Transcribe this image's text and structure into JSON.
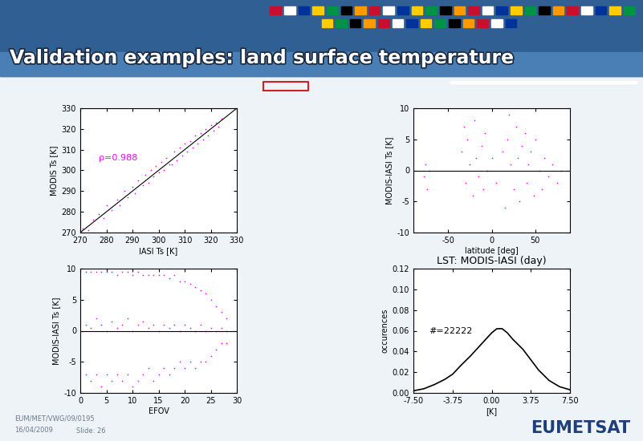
{
  "header": {
    "title": "Validation examples: land surface temperature"
  },
  "footer": {
    "document": "EUM/MET/VWG/09/0195",
    "date": "16/04/2009",
    "slide": "Slide: 26",
    "logo": "EUMETSAT"
  },
  "chart_data": [
    {
      "type": "scatter",
      "xlabel": "IASI Ts [K]",
      "ylabel": "MODIS Ts [K]",
      "annotation": "ρ=0.988",
      "color": "#ff00ff",
      "marker": ".",
      "x": [
        271,
        273,
        275,
        277,
        279,
        280,
        282,
        284,
        285,
        287,
        288,
        290,
        291,
        292,
        294,
        295,
        296,
        297,
        298,
        299,
        300,
        301,
        302,
        303,
        304,
        305,
        306,
        307,
        308,
        309,
        310,
        311,
        312,
        313,
        314,
        315,
        316,
        317,
        318,
        319,
        320,
        321,
        322,
        323,
        324
      ],
      "values": [
        272,
        271,
        276,
        279,
        277,
        283,
        281,
        286,
        283,
        290,
        287,
        292,
        289,
        295,
        293,
        298,
        294,
        300,
        297,
        302,
        299,
        304,
        300,
        306,
        303,
        303,
        309,
        305,
        311,
        307,
        313,
        309,
        314,
        311,
        317,
        313,
        318,
        315,
        320,
        317,
        322,
        319,
        323,
        321,
        325
      ],
      "reference_line": {
        "slope": 1,
        "intercept": 0
      },
      "xlim": [
        270,
        330
      ],
      "xticks": [
        270,
        280,
        290,
        300,
        310,
        320,
        330
      ],
      "ylim": [
        270,
        330
      ],
      "yticks": [
        270,
        280,
        290,
        300,
        310,
        320,
        330
      ]
    },
    {
      "type": "scatter",
      "xlabel": "latitude [deg]",
      "ylabel": "MODIS-IASI Ts [K]",
      "color": "#ff00ff",
      "marker": ".",
      "x": [
        -78,
        -76,
        -74,
        -72,
        -35,
        -32,
        -30,
        -28,
        -25,
        -22,
        -20,
        -18,
        -15,
        -12,
        -10,
        -8,
        -5,
        0,
        5,
        12,
        15,
        18,
        20,
        22,
        25,
        28,
        30,
        32,
        35,
        38,
        40,
        42,
        45,
        48,
        50,
        55,
        58,
        60,
        65,
        70,
        75,
        80
      ],
      "values": [
        -1,
        1,
        -3,
        0,
        3,
        7,
        -2,
        5,
        1,
        -4,
        8,
        2,
        -1,
        4,
        -3,
        6,
        0,
        2,
        -2,
        3,
        -6,
        5,
        9,
        1,
        -3,
        7,
        2,
        -5,
        4,
        6,
        -2,
        1,
        3,
        -4,
        5,
        0,
        -3,
        2,
        -1,
        1,
        -2,
        0
      ],
      "reference_line": {
        "y": 0
      },
      "xlim": [
        -90,
        90
      ],
      "xticks": [
        -50,
        0,
        50
      ],
      "ylim": [
        -10,
        10
      ],
      "yticks": [
        -10,
        -5,
        0,
        5,
        10
      ]
    },
    {
      "type": "scatter",
      "xlabel": "EFOV",
      "ylabel": "MODIS-IASI Ts [K]",
      "color": "#ff00ff",
      "marker": ".",
      "x": [
        1,
        1,
        1,
        2,
        2,
        2,
        3,
        3,
        3,
        4,
        4,
        4,
        5,
        5,
        5,
        6,
        6,
        6,
        7,
        7,
        7,
        8,
        8,
        8,
        9,
        9,
        9,
        10,
        10,
        10,
        11,
        11,
        11,
        12,
        12,
        12,
        13,
        13,
        13,
        14,
        14,
        14,
        15,
        15,
        15,
        16,
        16,
        16,
        17,
        17,
        17,
        18,
        18,
        18,
        19,
        19,
        19,
        20,
        20,
        20,
        21,
        21,
        21,
        22,
        22,
        22,
        23,
        23,
        23,
        24,
        24,
        24,
        25,
        25,
        25,
        26,
        26,
        26,
        27,
        27,
        27,
        28,
        28,
        28
      ],
      "values": [
        9.5,
        1,
        -7,
        9.5,
        0.5,
        -8,
        9.5,
        2,
        -7,
        9.5,
        1,
        -9,
        9.5,
        0,
        -7,
        9.5,
        1.5,
        -8,
        9,
        0.5,
        -7,
        9.5,
        1,
        -8,
        9.5,
        2,
        -7,
        9,
        0,
        -9,
        9.5,
        1,
        -8,
        9,
        1.5,
        -7,
        9,
        0.5,
        -6,
        9,
        1,
        -8,
        9,
        0,
        -7,
        9,
        1,
        -6,
        8.5,
        0.5,
        -7,
        9,
        1,
        -6,
        8,
        0,
        -5,
        8,
        1,
        -6,
        7.5,
        0.5,
        -5,
        7,
        0,
        -6,
        6.5,
        1,
        -5,
        6,
        0,
        -5,
        5,
        0.5,
        -4,
        4,
        0,
        -3,
        3,
        0.5,
        -2,
        2,
        0,
        -2
      ],
      "reference_line": {
        "y": 0
      },
      "xlim": [
        0,
        30
      ],
      "xticks": [
        0,
        5,
        10,
        15,
        20,
        25,
        30
      ],
      "ylim": [
        -10,
        10
      ],
      "yticks": [
        -10,
        -5,
        0,
        5,
        10
      ]
    },
    {
      "type": "line",
      "title": "LST: MODIS-IASI (day)",
      "xlabel": "[K]",
      "ylabel": "occurences",
      "annotation": "#=22222",
      "color": "#000000",
      "x": [
        -7.5,
        -6.5,
        -5.5,
        -4.5,
        -3.75,
        -3,
        -2,
        -1,
        0,
        0.5,
        1,
        1.5,
        2,
        3,
        3.75,
        4.5,
        5.5,
        6.5,
        7.5
      ],
      "values": [
        0.002,
        0.004,
        0.008,
        0.013,
        0.018,
        0.026,
        0.036,
        0.047,
        0.058,
        0.062,
        0.062,
        0.058,
        0.052,
        0.042,
        0.032,
        0.022,
        0.012,
        0.006,
        0.003
      ],
      "xlim": [
        -7.5,
        7.5
      ],
      "xticks": [
        {
          "value": -7.5,
          "label": "-7.50"
        },
        {
          "value": -3.75,
          "label": "-3.75"
        },
        {
          "value": 0,
          "label": "0.00"
        },
        {
          "value": 3.75,
          "label": "3.75"
        },
        {
          "value": 7.5,
          "label": "7.50"
        }
      ],
      "ylim": [
        0,
        0.12
      ],
      "yticks": [
        {
          "value": 0,
          "label": "0.00"
        },
        {
          "value": 0.02,
          "label": "0.02"
        },
        {
          "value": 0.04,
          "label": "0.04"
        },
        {
          "value": 0.06,
          "label": "0.06"
        },
        {
          "value": 0.08,
          "label": "0.08"
        },
        {
          "value": 0.1,
          "label": "0.10"
        },
        {
          "value": 0.12,
          "label": "0.12"
        }
      ]
    }
  ]
}
